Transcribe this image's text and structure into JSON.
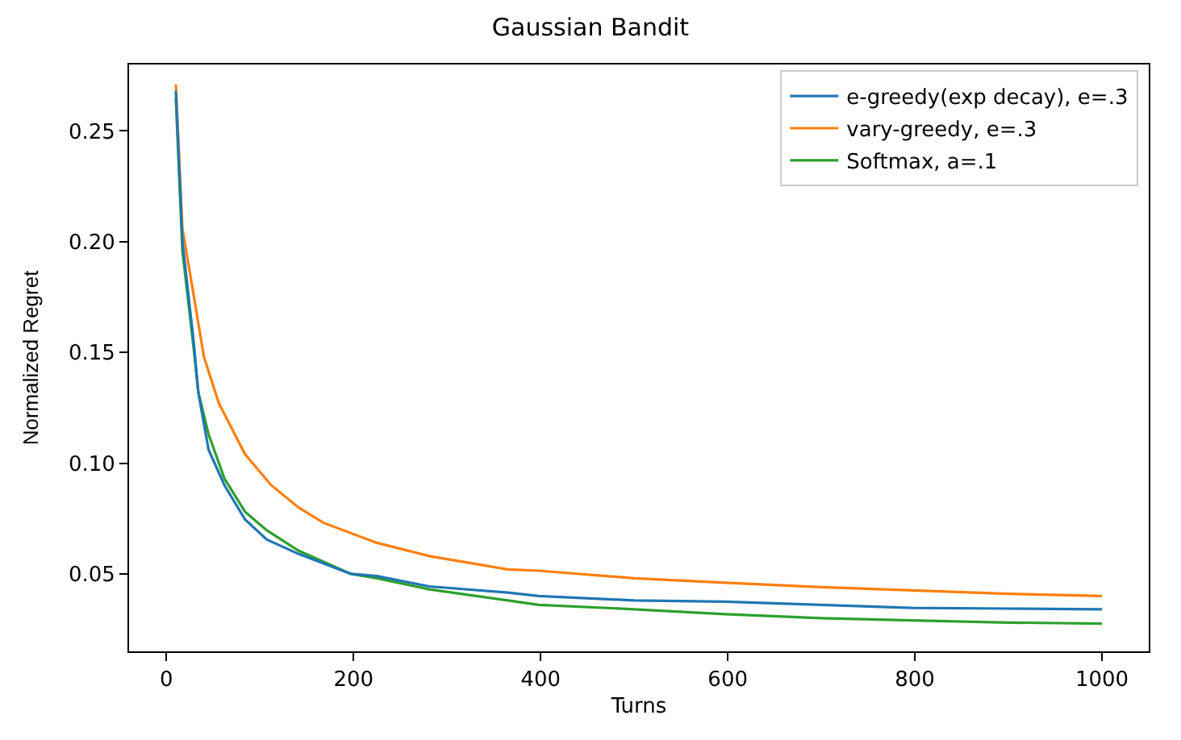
{
  "chart_data": {
    "type": "line",
    "title": "Gaussian Bandit",
    "xlabel": "Turns",
    "ylabel": "Normalized Regret",
    "xlim": [
      -40,
      1050
    ],
    "ylim": [
      0.015,
      0.28
    ],
    "xticks": [
      0,
      200,
      400,
      600,
      800,
      1000
    ],
    "yticks": [
      {
        "value": 0.05,
        "label": "0.05"
      },
      {
        "value": 0.1,
        "label": "0.10"
      },
      {
        "value": 0.15,
        "label": "0.15"
      },
      {
        "value": 0.2,
        "label": "0.20"
      },
      {
        "value": 0.25,
        "label": "0.25"
      }
    ],
    "grid": false,
    "legend": "top right",
    "marker": "none",
    "line_style": "solid",
    "series": [
      {
        "name": "e-greedy(exp decay), e=.3",
        "color": "#1f77b4",
        "x": [
          10,
          17,
          29,
          34,
          45,
          62,
          84,
          107,
          141,
          197,
          225,
          281,
          365,
          398,
          500,
          597,
          700,
          797,
          900,
          1000
        ],
        "values": [
          0.268,
          0.2,
          0.155,
          0.132,
          0.106,
          0.09,
          0.0745,
          0.0655,
          0.059,
          0.05,
          0.049,
          0.0443,
          0.0415,
          0.04,
          0.038,
          0.0374,
          0.036,
          0.0346,
          0.0343,
          0.034
        ]
      },
      {
        "name": "vary-greedy, e=.3",
        "color": "#ff7f0e",
        "x": [
          10,
          17,
          29,
          40,
          56,
          84,
          112,
          141,
          168,
          225,
          281,
          365,
          398,
          500,
          597,
          700,
          797,
          900,
          1000
        ],
        "values": [
          0.271,
          0.206,
          0.176,
          0.148,
          0.127,
          0.104,
          0.09,
          0.08,
          0.073,
          0.064,
          0.058,
          0.052,
          0.0514,
          0.048,
          0.046,
          0.044,
          0.0425,
          0.041,
          0.04
        ]
      },
      {
        "name": "Softmax, a=.1",
        "color": "#2ca02c",
        "x": [
          10,
          17,
          29,
          34,
          45,
          62,
          84,
          107,
          141,
          197,
          225,
          281,
          365,
          398,
          500,
          597,
          700,
          797,
          900,
          1000
        ],
        "values": [
          0.265,
          0.196,
          0.152,
          0.132,
          0.113,
          0.093,
          0.078,
          0.0697,
          0.0605,
          0.05,
          0.048,
          0.043,
          0.038,
          0.036,
          0.034,
          0.0318,
          0.03,
          0.029,
          0.028,
          0.0275
        ]
      }
    ]
  }
}
